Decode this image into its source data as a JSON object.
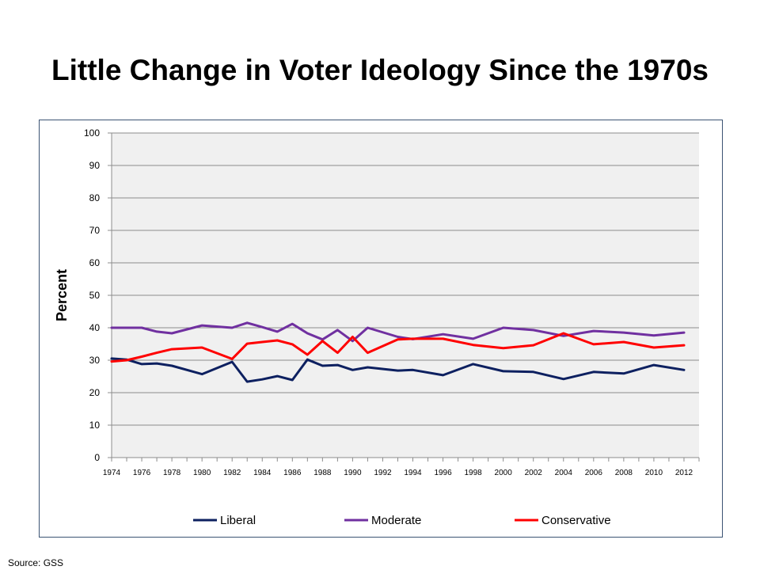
{
  "slide": {
    "title": "Little Change in Voter Ideology Since the 1970s",
    "source": "Source: GSS"
  },
  "chart_data": {
    "type": "line",
    "ylabel": "Percent",
    "xlabel": "",
    "ylim": [
      0,
      100
    ],
    "yticks": [
      0,
      10,
      20,
      30,
      40,
      50,
      60,
      70,
      80,
      90,
      100
    ],
    "xlim": [
      1974,
      2013
    ],
    "xticks": [
      "1974",
      "1976",
      "1978",
      "1980",
      "1982",
      "1984",
      "1986",
      "1988",
      "1990",
      "1992",
      "1994",
      "1996",
      "1998",
      "2000",
      "2002",
      "2004",
      "2006",
      "2008",
      "2010",
      "2012"
    ],
    "grid": true,
    "legend_position": "bottom",
    "plot_background": "#f0f0f0",
    "series": [
      {
        "name": "Liberal",
        "color": "#0d2060",
        "points": [
          [
            1974,
            30.5
          ],
          [
            1975,
            30.2
          ],
          [
            1976,
            28.8
          ],
          [
            1977,
            29.0
          ],
          [
            1978,
            28.3
          ],
          [
            1980,
            25.7
          ],
          [
            1982,
            29.5
          ],
          [
            1983,
            23.4
          ],
          [
            1984,
            24.1
          ],
          [
            1985,
            25.1
          ],
          [
            1986,
            23.9
          ],
          [
            1987,
            30.2
          ],
          [
            1988,
            28.3
          ],
          [
            1989,
            28.5
          ],
          [
            1990,
            27.0
          ],
          [
            1991,
            27.8
          ],
          [
            1993,
            26.8
          ],
          [
            1994,
            27.0
          ],
          [
            1996,
            25.4
          ],
          [
            1998,
            28.8
          ],
          [
            2000,
            26.6
          ],
          [
            2002,
            26.4
          ],
          [
            2004,
            24.2
          ],
          [
            2006,
            26.4
          ],
          [
            2008,
            25.9
          ],
          [
            2010,
            28.5
          ],
          [
            2012,
            27.0
          ]
        ]
      },
      {
        "name": "Moderate",
        "color": "#7030a0",
        "points": [
          [
            1974,
            40.0
          ],
          [
            1975,
            40.0
          ],
          [
            1976,
            40.0
          ],
          [
            1977,
            38.8
          ],
          [
            1978,
            38.3
          ],
          [
            1980,
            40.7
          ],
          [
            1982,
            40.0
          ],
          [
            1983,
            41.5
          ],
          [
            1984,
            40.2
          ],
          [
            1985,
            38.8
          ],
          [
            1986,
            41.2
          ],
          [
            1987,
            38.3
          ],
          [
            1988,
            36.4
          ],
          [
            1989,
            39.3
          ],
          [
            1990,
            35.9
          ],
          [
            1991,
            40.0
          ],
          [
            1993,
            37.2
          ],
          [
            1994,
            36.5
          ],
          [
            1996,
            38.0
          ],
          [
            1998,
            36.6
          ],
          [
            2000,
            40.0
          ],
          [
            2002,
            39.3
          ],
          [
            2004,
            37.5
          ],
          [
            2006,
            39.0
          ],
          [
            2008,
            38.5
          ],
          [
            2010,
            37.6
          ],
          [
            2012,
            38.5
          ]
        ]
      },
      {
        "name": "Conservative",
        "color": "#ff0000",
        "points": [
          [
            1974,
            29.6
          ],
          [
            1975,
            30.0
          ],
          [
            1976,
            31.1
          ],
          [
            1977,
            32.3
          ],
          [
            1978,
            33.4
          ],
          [
            1980,
            33.9
          ],
          [
            1982,
            30.4
          ],
          [
            1983,
            35.1
          ],
          [
            1984,
            35.6
          ],
          [
            1985,
            36.1
          ],
          [
            1986,
            34.9
          ],
          [
            1987,
            31.7
          ],
          [
            1988,
            35.9
          ],
          [
            1989,
            32.3
          ],
          [
            1990,
            37.2
          ],
          [
            1991,
            32.3
          ],
          [
            1993,
            36.4
          ],
          [
            1994,
            36.6
          ],
          [
            1996,
            36.6
          ],
          [
            1998,
            34.7
          ],
          [
            2000,
            33.7
          ],
          [
            2002,
            34.6
          ],
          [
            2004,
            38.3
          ],
          [
            2006,
            34.9
          ],
          [
            2008,
            35.6
          ],
          [
            2010,
            33.9
          ],
          [
            2012,
            34.6
          ]
        ]
      }
    ]
  }
}
